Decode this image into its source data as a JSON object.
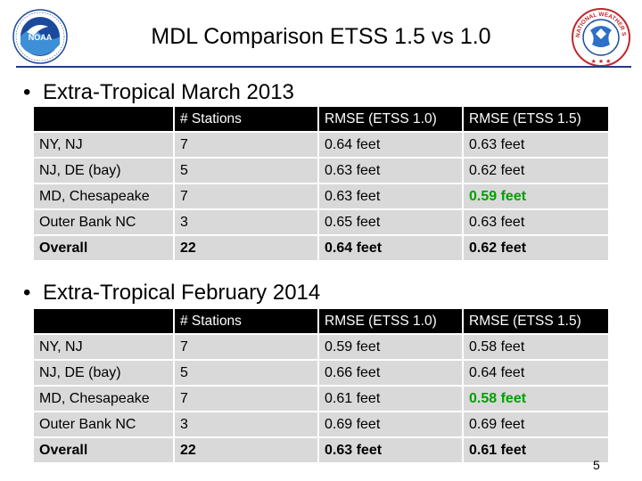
{
  "title": "MDL Comparison ETSS 1.5 vs 1.0",
  "colors": {
    "header_bg": "#000000",
    "cell_bg": "#d9d9d9",
    "highlight": "#00a000",
    "rule": "#1f3a8a"
  },
  "logos": {
    "left": "noaa-logo",
    "left_text": "NOAA",
    "right": "national-weather-service-logo",
    "right_text": "NATIONAL WEATHER SERVICE"
  },
  "sections": [
    {
      "heading": "Extra-Tropical March 2013",
      "columns": [
        "",
        "# Stations",
        "RMSE (ETSS 1.0)",
        "RMSE (ETSS 1.5)"
      ],
      "rows": [
        [
          "NY, NJ",
          "7",
          "0.64 feet",
          "0.63 feet"
        ],
        [
          "NJ, DE (bay)",
          "5",
          "0.63 feet",
          "0.62 feet"
        ],
        [
          "MD, Chesapeake",
          "7",
          "0.63 feet",
          "0.59 feet"
        ],
        [
          "Outer Bank NC",
          "3",
          "0.65 feet",
          "0.63 feet"
        ],
        [
          "Overall",
          "22",
          "0.64 feet",
          "0.62 feet"
        ]
      ],
      "highlight_cell": [
        2,
        3
      ]
    },
    {
      "heading": "Extra-Tropical February 2014",
      "columns": [
        "",
        "# Stations",
        "RMSE (ETSS 1.0)",
        "RMSE (ETSS 1.5)"
      ],
      "rows": [
        [
          "NY, NJ",
          "7",
          "0.59 feet",
          "0.58 feet"
        ],
        [
          "NJ, DE (bay)",
          "5",
          "0.66 feet",
          "0.64 feet"
        ],
        [
          "MD, Chesapeake",
          "7",
          "0.61 feet",
          "0.58 feet"
        ],
        [
          "Outer Bank NC",
          "3",
          "0.69 feet",
          "0.69 feet"
        ],
        [
          "Overall",
          "22",
          "0.63 feet",
          "0.61 feet"
        ]
      ],
      "highlight_cell": [
        2,
        3
      ]
    }
  ],
  "page_number": "5"
}
